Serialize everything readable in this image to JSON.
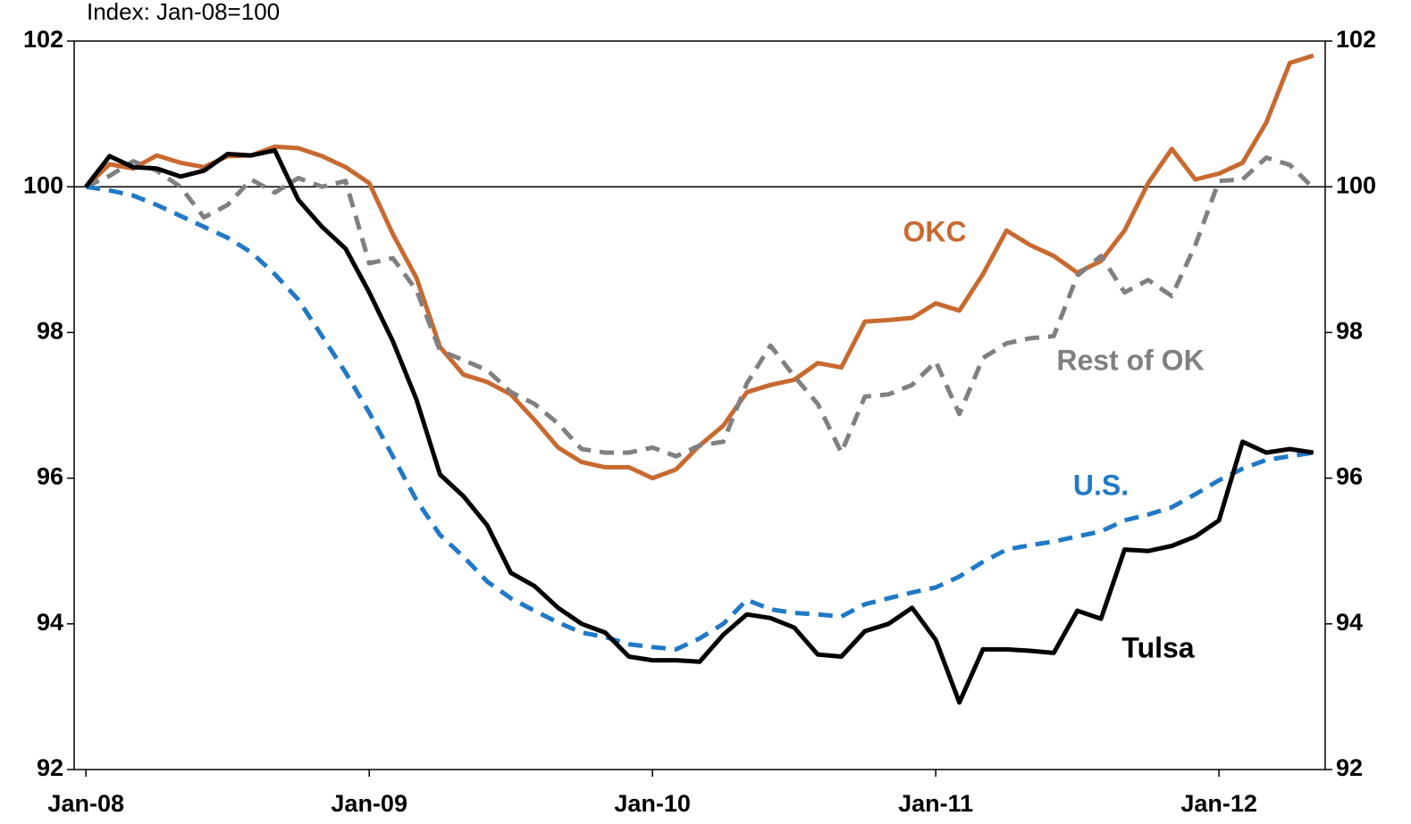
{
  "chart_data": {
    "type": "line",
    "subtitle": "Index: Jan-08=100",
    "categories": [
      "Jan-08",
      null,
      null,
      null,
      null,
      null,
      null,
      null,
      null,
      null,
      null,
      null,
      "Jan-09",
      null,
      null,
      null,
      null,
      null,
      null,
      null,
      null,
      null,
      null,
      null,
      "Jan-10",
      null,
      null,
      null,
      null,
      null,
      null,
      null,
      null,
      null,
      null,
      null,
      "Jan-11",
      null,
      null,
      null,
      null,
      null,
      null,
      null,
      null,
      null,
      null,
      null,
      "Jan-12",
      null,
      null,
      null,
      null
    ],
    "series": [
      {
        "name": "OKC",
        "color": "#c86a30",
        "dash": false,
        "values": [
          100,
          100.31,
          100.25,
          100.43,
          100.33,
          100.27,
          100.42,
          100.43,
          100.55,
          100.53,
          100.42,
          100.27,
          100.05,
          99.35,
          98.75,
          97.8,
          97.42,
          97.32,
          97.15,
          96.8,
          96.42,
          96.22,
          96.15,
          96.15,
          96.0,
          96.12,
          96.45,
          96.72,
          97.18,
          97.28,
          97.35,
          97.58,
          97.52,
          98.15,
          98.17,
          98.2,
          98.4,
          98.3,
          98.8,
          99.4,
          99.2,
          99.05,
          98.82,
          98.98,
          99.4,
          100.05,
          100.52,
          100.1,
          100.18,
          100.33,
          100.88,
          101.7,
          101.8
        ]
      },
      {
        "name": "Rest of OK",
        "color": "#808080",
        "dash": true,
        "values": [
          100,
          100.15,
          100.35,
          100.22,
          100.0,
          99.58,
          99.75,
          100.1,
          99.92,
          100.12,
          100.0,
          100.08,
          98.95,
          99.02,
          98.58,
          97.75,
          97.62,
          97.48,
          97.18,
          97.02,
          96.75,
          96.4,
          96.35,
          96.35,
          96.42,
          96.3,
          96.45,
          96.5,
          97.3,
          97.82,
          97.4,
          97.02,
          96.35,
          97.12,
          97.15,
          97.28,
          97.6,
          96.88,
          97.65,
          97.85,
          97.92,
          97.95,
          98.78,
          99.05,
          98.55,
          98.72,
          98.5,
          99.2,
          100.08,
          100.1,
          100.4,
          100.3,
          99.98
        ]
      },
      {
        "name": "U.S.",
        "color": "#2079c7",
        "dash": true,
        "values": [
          100,
          99.95,
          99.88,
          99.75,
          99.6,
          99.45,
          99.3,
          99.1,
          98.8,
          98.45,
          97.95,
          97.45,
          96.9,
          96.3,
          95.7,
          95.22,
          94.92,
          94.58,
          94.35,
          94.18,
          94.02,
          93.88,
          93.82,
          93.72,
          93.68,
          93.65,
          93.8,
          94.0,
          94.33,
          94.2,
          94.15,
          94.13,
          94.1,
          94.27,
          94.35,
          94.43,
          94.5,
          94.65,
          94.85,
          95.02,
          95.08,
          95.13,
          95.2,
          95.27,
          95.42,
          95.5,
          95.6,
          95.78,
          95.97,
          96.13,
          96.25,
          96.3,
          96.35
        ]
      },
      {
        "name": "Tulsa",
        "color": "#000000",
        "dash": false,
        "values": [
          100,
          100.42,
          100.27,
          100.25,
          100.14,
          100.22,
          100.45,
          100.43,
          100.5,
          99.82,
          99.45,
          99.15,
          98.55,
          97.88,
          97.08,
          96.05,
          95.75,
          95.35,
          94.7,
          94.52,
          94.22,
          94.0,
          93.88,
          93.55,
          93.5,
          93.5,
          93.48,
          93.85,
          94.13,
          94.08,
          93.95,
          93.58,
          93.55,
          93.9,
          94.0,
          94.22,
          93.78,
          92.92,
          93.65,
          93.65,
          93.63,
          93.6,
          94.18,
          94.07,
          95.02,
          95.0,
          95.07,
          95.2,
          95.42,
          96.5,
          96.35,
          96.4,
          96.35
        ]
      }
    ],
    "ylim": [
      92,
      102
    ],
    "yticks": [
      92,
      94,
      96,
      98,
      100,
      102
    ],
    "y2lim": [
      92,
      102
    ],
    "y2ticks": [
      92,
      94,
      96,
      98,
      100,
      102
    ],
    "reference_line": 100,
    "grid": false
  }
}
